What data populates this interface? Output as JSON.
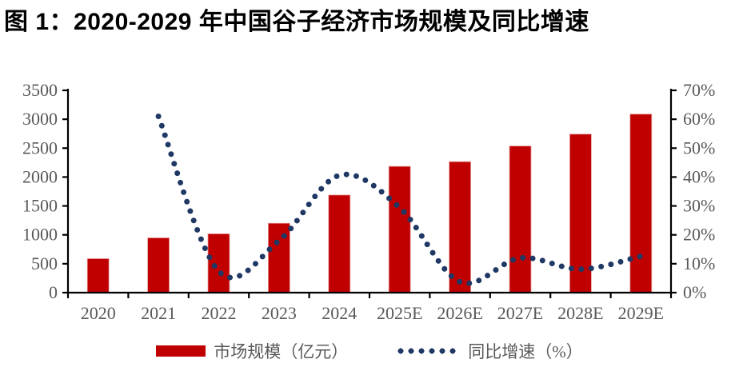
{
  "title": "图 1：2020-2029 年中国谷子经济市场规模及同比增速",
  "legend": {
    "market": "市场规模（亿元）",
    "growth": "同比增速（%）"
  },
  "colors": {
    "bar": "#c00000",
    "line": "#1f3864",
    "axis": "#000000",
    "label": "#595959",
    "title": "#000000"
  },
  "chart_data": {
    "type": "combo",
    "title": "图 1：2020-2029 年中国谷子经济市场规模及同比增速",
    "categories": [
      "2020",
      "2021",
      "2022",
      "2023",
      "2024",
      "2025E",
      "2026E",
      "2027E",
      "2028E",
      "2029E"
    ],
    "series": [
      {
        "name": "市场规模（亿元）",
        "type": "bar",
        "axis": "left",
        "values": [
          588,
          948,
          1018,
          1201,
          1689,
          2185,
          2266,
          2537,
          2743,
          3089
        ]
      },
      {
        "name": "同比增速（%）",
        "type": "dotted-line",
        "axis": "right",
        "values": [
          null,
          61,
          7.4,
          18,
          40.6,
          29.4,
          3.7,
          12,
          8.1,
          12.6
        ]
      }
    ],
    "left_axis": {
      "min": 0,
      "max": 3500,
      "step": 500,
      "tick_labels": [
        "0",
        "500",
        "1000",
        "1500",
        "2000",
        "2500",
        "3000",
        "3500"
      ]
    },
    "right_axis": {
      "min": 0,
      "max": 70,
      "step": 10,
      "tick_labels": [
        "0%",
        "10%",
        "20%",
        "30%",
        "40%",
        "50%",
        "60%",
        "70%"
      ]
    },
    "grid": false,
    "legend_position": "bottom"
  }
}
